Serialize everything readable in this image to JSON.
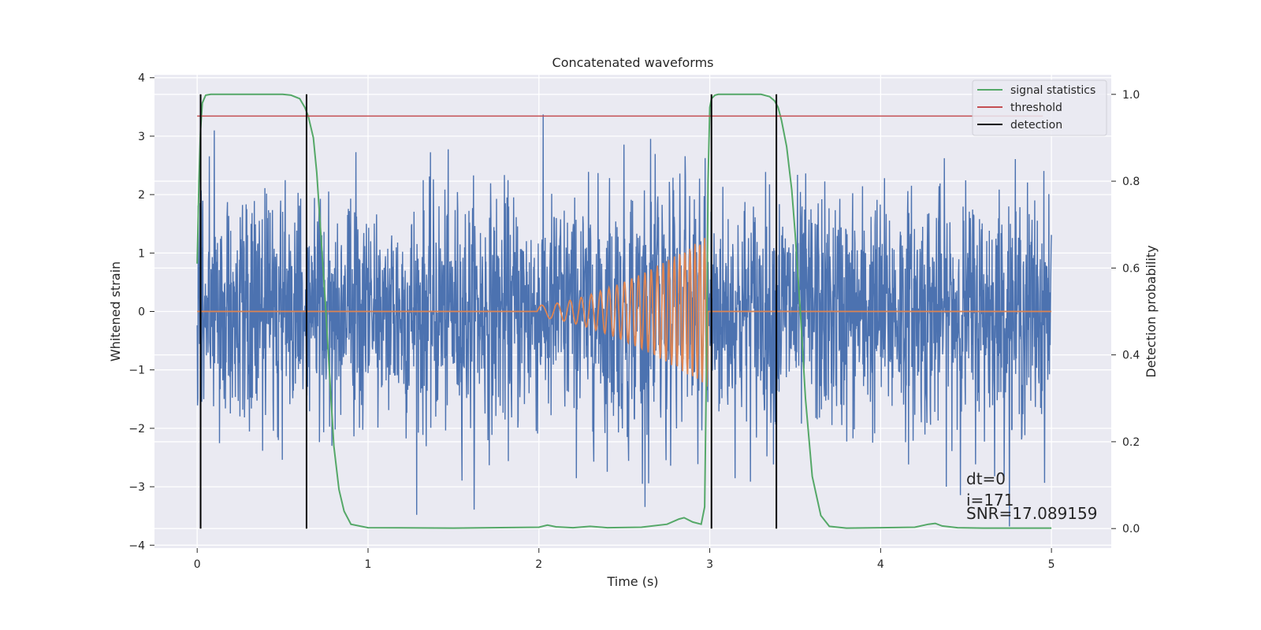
{
  "chart_data": {
    "type": "line",
    "title": "Concatenated waveforms",
    "xlabel": "Time (s)",
    "ylabel": "Whitened strain",
    "y2label": "Detection probability",
    "xlim": [
      -0.25,
      5.35
    ],
    "ylim": [
      -4.05,
      4.05
    ],
    "y2lim": [
      -0.045,
      1.045
    ],
    "xticks": [
      0,
      1,
      2,
      3,
      4,
      5
    ],
    "yticks": [
      -4,
      -3,
      -2,
      -1,
      0,
      1,
      2,
      3,
      4
    ],
    "y2ticks": [
      0.0,
      0.2,
      0.4,
      0.6,
      0.8,
      1.0
    ],
    "xtick_labels": [
      "0",
      "1",
      "2",
      "3",
      "4",
      "5"
    ],
    "ytick_labels": [
      "−4",
      "−3",
      "−2",
      "−1",
      "0",
      "1",
      "2",
      "3",
      "4"
    ],
    "y2tick_labels": [
      "0.0",
      "0.2",
      "0.4",
      "0.6",
      "0.8",
      "1.0"
    ],
    "grid": true,
    "legend_position": "top-right",
    "colors": {
      "strain": "#4c72b0",
      "template": "#dd8452",
      "signal_statistics": "#55a868",
      "threshold": "#c44e52",
      "detection": "#000000",
      "background": "#eaeaf2",
      "grid": "#ffffff"
    },
    "series": [
      {
        "name": "signal statistics",
        "axis": "right",
        "x": [
          0,
          0.01,
          0.02,
          0.03,
          0.05,
          0.08,
          0.12,
          0.2,
          0.3,
          0.4,
          0.5,
          0.55,
          0.6,
          0.63,
          0.65,
          0.68,
          0.7,
          0.72,
          0.75,
          0.78,
          0.8,
          0.83,
          0.86,
          0.9,
          1.0,
          1.5,
          2.0,
          2.05,
          2.1,
          2.2,
          2.3,
          2.4,
          2.6,
          2.75,
          2.82,
          2.85,
          2.9,
          2.95,
          2.97,
          2.98,
          2.99,
          3.0,
          3.01,
          3.03,
          3.05,
          3.08,
          3.1,
          3.2,
          3.3,
          3.35,
          3.38,
          3.4,
          3.42,
          3.45,
          3.48,
          3.5,
          3.53,
          3.56,
          3.6,
          3.65,
          3.7,
          3.8,
          4.0,
          4.2,
          4.28,
          4.32,
          4.36,
          4.45,
          4.6,
          5.0
        ],
        "values": [
          0.61,
          0.8,
          0.92,
          0.98,
          0.998,
          1.0,
          1.0,
          1.0,
          1.0,
          1.0,
          1.0,
          0.998,
          0.99,
          0.97,
          0.95,
          0.9,
          0.82,
          0.7,
          0.52,
          0.32,
          0.19,
          0.09,
          0.04,
          0.01,
          0.002,
          0.001,
          0.003,
          0.008,
          0.004,
          0.002,
          0.005,
          0.002,
          0.003,
          0.01,
          0.022,
          0.025,
          0.015,
          0.01,
          0.05,
          0.35,
          0.8,
          0.97,
          0.99,
          0.998,
          1.0,
          1.0,
          1.0,
          1.0,
          1.0,
          0.995,
          0.985,
          0.97,
          0.94,
          0.88,
          0.78,
          0.68,
          0.5,
          0.3,
          0.12,
          0.03,
          0.005,
          0.001,
          0.002,
          0.003,
          0.01,
          0.012,
          0.006,
          0.002,
          0.001,
          0.001
        ]
      },
      {
        "name": "threshold",
        "axis": "right",
        "x": [
          0,
          4.95
        ],
        "values": [
          0.95,
          0.95
        ]
      },
      {
        "name": "detection",
        "axis": "right",
        "type": "vlines",
        "x": [
          0.02,
          0.64,
          3.01,
          3.39
        ],
        "range": [
          0.0,
          1.0
        ]
      }
    ],
    "strain_noise": {
      "x_range": [
        0,
        5
      ],
      "amplitude_typical": 1.0,
      "peak_max": 3.72,
      "peak_min": -3.68
    },
    "template_chirp": {
      "start": 1.99,
      "end": 2.99,
      "max_amplitude": 1.3
    },
    "annotations": [
      "dt=0",
      "i=171",
      "SNR=17.089159"
    ]
  }
}
